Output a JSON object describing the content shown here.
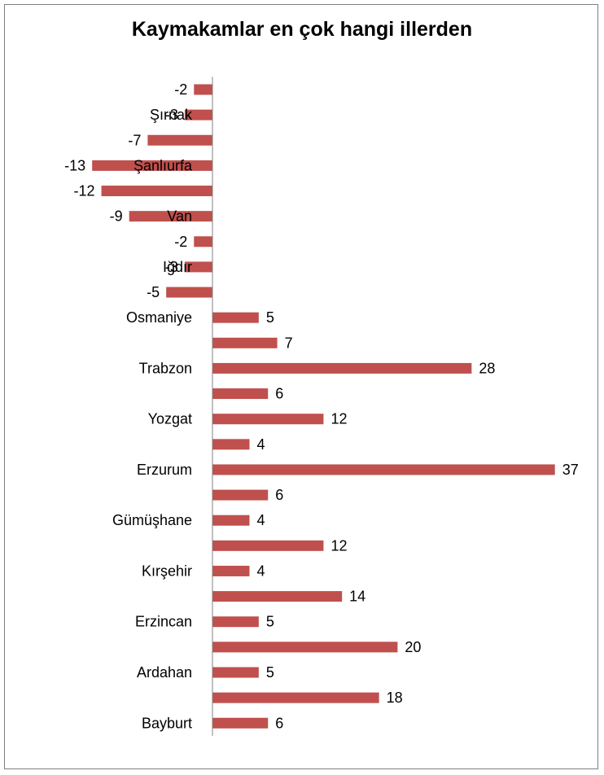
{
  "chart_data": {
    "type": "bar",
    "orientation": "horizontal",
    "title": "Kaymakamlar en çok hangi illerden",
    "xlabel": "",
    "ylabel": "",
    "grid": false,
    "legend": "none",
    "bar_color": "#c0504d",
    "categories": [
      "",
      "Şırnak",
      "",
      "Şanlıurfa",
      "",
      "Van",
      "",
      "Iğdır",
      "",
      "Osmaniye",
      "",
      "Trabzon",
      "",
      "Yozgat",
      "",
      "Erzurum",
      "",
      "Gümüşhane",
      "",
      "Kırşehir",
      "",
      "Erzincan",
      "",
      "Ardahan",
      "",
      "Bayburt"
    ],
    "values": [
      -2,
      -3,
      -7,
      -13,
      -12,
      -9,
      -2,
      -3,
      -5,
      5,
      7,
      28,
      6,
      12,
      4,
      37,
      6,
      4,
      12,
      4,
      14,
      5,
      20,
      5,
      18,
      6
    ],
    "data_labels": [
      "-2",
      "-3",
      "-7",
      "-13",
      "-12",
      "-9",
      "-2",
      "-3",
      "-5",
      "5",
      "7",
      "28",
      "6",
      "12",
      "4",
      "37",
      "6",
      "4",
      "12",
      "4",
      "14",
      "5",
      "20",
      "5",
      "18",
      "6"
    ]
  }
}
